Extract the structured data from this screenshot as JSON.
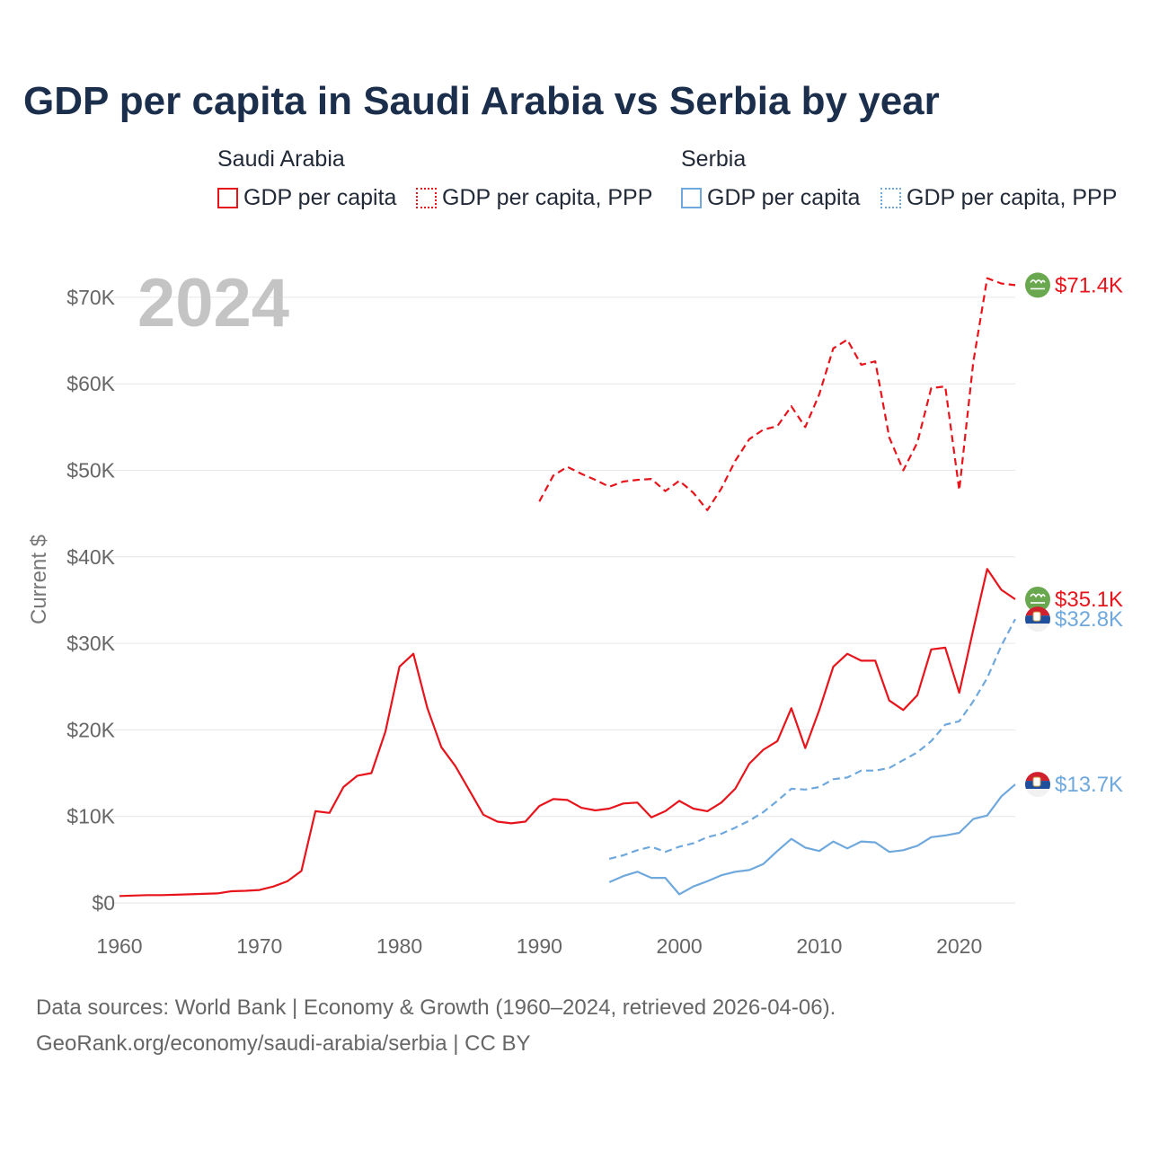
{
  "chart_data": {
    "type": "line",
    "title": "GDP per capita in Saudi Arabia vs Serbia by year",
    "ylabel": "Current $",
    "xlabel": "",
    "year_label": "2024",
    "xlim": [
      1960,
      2024
    ],
    "ylim": [
      0,
      72000
    ],
    "x_ticks": [
      1960,
      1970,
      1980,
      1990,
      2000,
      2010,
      2020
    ],
    "y_ticks": [
      {
        "value": 0,
        "label": "$0"
      },
      {
        "value": 10000,
        "label": "$10K"
      },
      {
        "value": 20000,
        "label": "$20K"
      },
      {
        "value": 30000,
        "label": "$30K"
      },
      {
        "value": 40000,
        "label": "$40K"
      },
      {
        "value": 50000,
        "label": "$50K"
      },
      {
        "value": 60000,
        "label": "$60K"
      },
      {
        "value": 70000,
        "label": "$70K"
      }
    ],
    "legend": {
      "groups": [
        {
          "country": "Saudi Arabia",
          "items": [
            "GDP per capita",
            "GDP per capita, PPP"
          ]
        },
        {
          "country": "Serbia",
          "items": [
            "GDP per capita",
            "GDP per capita, PPP"
          ]
        }
      ]
    },
    "series": [
      {
        "name": "Saudi Arabia GDP per capita",
        "country": "Saudi Arabia",
        "metric": "GDP per capita",
        "color": "#e8141c",
        "dash": "solid",
        "end_label": "$35.1K",
        "flag": "saudi-arabia",
        "x": [
          1960,
          1961,
          1962,
          1963,
          1964,
          1965,
          1966,
          1967,
          1968,
          1969,
          1970,
          1971,
          1972,
          1973,
          1974,
          1975,
          1976,
          1977,
          1978,
          1979,
          1980,
          1981,
          1982,
          1983,
          1984,
          1985,
          1986,
          1987,
          1988,
          1989,
          1990,
          1991,
          1992,
          1993,
          1994,
          1995,
          1996,
          1997,
          1998,
          1999,
          2000,
          2001,
          2002,
          2003,
          2004,
          2005,
          2006,
          2007,
          2008,
          2009,
          2010,
          2011,
          2012,
          2013,
          2014,
          2015,
          2016,
          2017,
          2018,
          2019,
          2020,
          2021,
          2022,
          2023,
          2024
        ],
        "values": [
          800,
          850,
          900,
          900,
          950,
          1000,
          1050,
          1100,
          1350,
          1400,
          1500,
          1900,
          2500,
          3700,
          10600,
          10400,
          13400,
          14700,
          15000,
          19800,
          27300,
          28800,
          22500,
          18000,
          15800,
          13000,
          10200,
          9400,
          9200,
          9400,
          11200,
          12000,
          11900,
          11000,
          10700,
          10900,
          11500,
          11600,
          9900,
          10600,
          11800,
          10900,
          10600,
          11600,
          13200,
          16100,
          17700,
          18700,
          22500,
          17900,
          22300,
          27300,
          28800,
          28000,
          28000,
          23400,
          22300,
          24000,
          29300,
          29500,
          24300,
          31600,
          38600,
          36200,
          35100
        ]
      },
      {
        "name": "Saudi Arabia GDP per capita, PPP",
        "country": "Saudi Arabia",
        "metric": "GDP per capita, PPP",
        "color": "#e8141c",
        "dash": "dashed",
        "end_label": "$71.4K",
        "flag": "saudi-arabia",
        "x": [
          1990,
          1991,
          1992,
          1993,
          1994,
          1995,
          1996,
          1997,
          1998,
          1999,
          2000,
          2001,
          2002,
          2003,
          2004,
          2005,
          2006,
          2007,
          2008,
          2009,
          2010,
          2011,
          2012,
          2013,
          2014,
          2015,
          2016,
          2017,
          2018,
          2019,
          2020,
          2021,
          2022,
          2023,
          2024
        ],
        "values": [
          46400,
          49400,
          50400,
          49600,
          48900,
          48100,
          48700,
          48900,
          49000,
          47600,
          48800,
          47400,
          45400,
          47900,
          51100,
          53600,
          54700,
          55100,
          57400,
          55000,
          58800,
          64100,
          65100,
          62200,
          62600,
          53800,
          50000,
          53200,
          59500,
          59700,
          47700,
          62500,
          72200,
          71600,
          71400
        ]
      },
      {
        "name": "Serbia GDP per capita",
        "country": "Serbia",
        "metric": "GDP per capita",
        "color": "#6fa8dc",
        "dash": "solid",
        "end_label": "$13.7K",
        "flag": "serbia",
        "x": [
          1995,
          1996,
          1997,
          1998,
          1999,
          2000,
          2001,
          2002,
          2003,
          2004,
          2005,
          2006,
          2007,
          2008,
          2009,
          2010,
          2011,
          2012,
          2013,
          2014,
          2015,
          2016,
          2017,
          2018,
          2019,
          2020,
          2021,
          2022,
          2023,
          2024
        ],
        "values": [
          2400,
          3100,
          3600,
          2900,
          2900,
          1000,
          1900,
          2500,
          3200,
          3600,
          3800,
          4500,
          6000,
          7400,
          6400,
          6000,
          7100,
          6300,
          7100,
          7000,
          5900,
          6100,
          6600,
          7600,
          7800,
          8100,
          9700,
          10100,
          12300,
          13700
        ]
      },
      {
        "name": "Serbia GDP per capita, PPP",
        "country": "Serbia",
        "metric": "GDP per capita, PPP",
        "color": "#6fa8dc",
        "dash": "dashed",
        "end_label": "$32.8K",
        "flag": "serbia",
        "x": [
          1995,
          1996,
          1997,
          1998,
          1999,
          2000,
          2001,
          2002,
          2003,
          2004,
          2005,
          2006,
          2007,
          2008,
          2009,
          2010,
          2011,
          2012,
          2013,
          2014,
          2015,
          2016,
          2017,
          2018,
          2019,
          2020,
          2021,
          2022,
          2023,
          2024
        ],
        "values": [
          5100,
          5500,
          6100,
          6500,
          5900,
          6500,
          6900,
          7600,
          8000,
          8700,
          9500,
          10500,
          11800,
          13200,
          13100,
          13400,
          14300,
          14500,
          15300,
          15300,
          15600,
          16500,
          17400,
          18700,
          20600,
          21000,
          23300,
          26000,
          29700,
          32800
        ]
      }
    ]
  },
  "footer": {
    "line1": "Data sources: World Bank | Economy & Growth (1960–2024, retrieved 2026-04-06).",
    "line2": "GeoRank.org/economy/saudi-arabia/serbia | CC BY"
  },
  "colors": {
    "saudi": "#e8141c",
    "serbia": "#6fa8dc",
    "title": "#1b2f4d",
    "grid": "#e6e6e6"
  }
}
